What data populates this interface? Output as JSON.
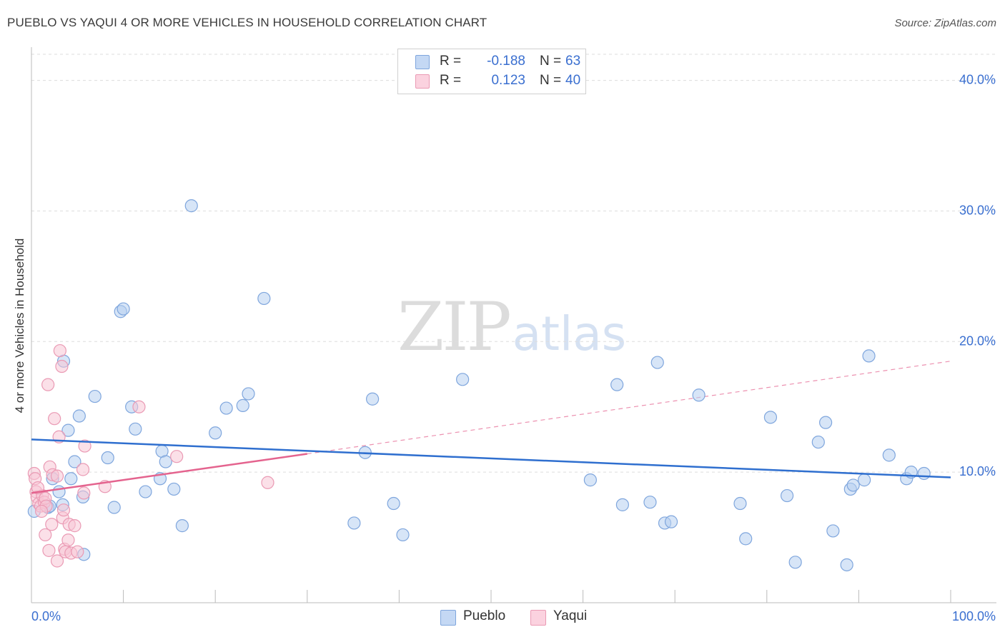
{
  "header": {
    "title": "PUEBLO VS YAQUI 4 OR MORE VEHICLES IN HOUSEHOLD CORRELATION CHART",
    "source": "Source: ZipAtlas.com"
  },
  "legend": {
    "pueblo": {
      "r_label": "R =",
      "r_value": "-0.188",
      "n_label": "N =",
      "n_value": "63"
    },
    "yaqui": {
      "r_label": "R =",
      "r_value": "0.123",
      "n_label": "N =",
      "n_value": "40"
    }
  },
  "watermark": {
    "zip": "ZIP",
    "atlas": "atlas"
  },
  "colors": {
    "pueblo_fill": "#b6cff1",
    "pueblo_stroke": "#7fa6dd",
    "pueblo_line": "#2f6fcf",
    "yaqui_fill": "#f8c6d6",
    "yaqui_stroke": "#ea9ab4",
    "yaqui_line": "#e4638e",
    "tick_label": "#3a6fd0",
    "grid": "#dddddd"
  },
  "chart_data": {
    "type": "scatter",
    "title": "PUEBLO VS YAQUI 4 OR MORE VEHICLES IN HOUSEHOLD CORRELATION CHART",
    "xlabel": "",
    "ylabel": "4 or more Vehicles in Household",
    "xlim": [
      0,
      100
    ],
    "ylim": [
      0,
      42
    ],
    "x_tick_labels": [
      "0.0%",
      "100.0%"
    ],
    "y_ticks": [
      10,
      20,
      30,
      40
    ],
    "y_tick_labels": [
      "10.0%",
      "20.0%",
      "30.0%",
      "40.0%"
    ],
    "legend_bottom": [
      "Pueblo",
      "Yaqui"
    ],
    "series": [
      {
        "name": "Pueblo",
        "points": [
          [
            17.4,
            30.4
          ],
          [
            25.3,
            23.3
          ],
          [
            9.7,
            22.3
          ],
          [
            10.0,
            22.5
          ],
          [
            3.5,
            18.5
          ],
          [
            6.9,
            15.8
          ],
          [
            8.3,
            11.1
          ],
          [
            10.9,
            15.0
          ],
          [
            11.3,
            13.3
          ],
          [
            14.2,
            11.6
          ],
          [
            14.6,
            10.8
          ],
          [
            5.2,
            14.3
          ],
          [
            4.0,
            13.2
          ],
          [
            4.7,
            10.8
          ],
          [
            4.3,
            9.5
          ],
          [
            2.3,
            9.5
          ],
          [
            3.0,
            8.5
          ],
          [
            5.6,
            8.1
          ],
          [
            1.8,
            7.3
          ],
          [
            9.0,
            7.3
          ],
          [
            12.4,
            8.5
          ],
          [
            14.0,
            9.5
          ],
          [
            15.5,
            8.7
          ],
          [
            16.4,
            5.9
          ],
          [
            20.0,
            13.0
          ],
          [
            21.2,
            14.9
          ],
          [
            23.0,
            15.1
          ],
          [
            23.6,
            16.0
          ],
          [
            5.7,
            3.7
          ],
          [
            2.0,
            7.4
          ],
          [
            3.4,
            7.5
          ],
          [
            35.1,
            6.1
          ],
          [
            37.1,
            15.6
          ],
          [
            39.4,
            7.6
          ],
          [
            40.4,
            5.2
          ],
          [
            46.9,
            17.1
          ],
          [
            36.3,
            11.5
          ],
          [
            60.8,
            9.4
          ],
          [
            63.7,
            16.7
          ],
          [
            64.3,
            7.5
          ],
          [
            67.3,
            7.7
          ],
          [
            68.1,
            18.4
          ],
          [
            68.9,
            6.1
          ],
          [
            69.6,
            6.2
          ],
          [
            72.6,
            15.9
          ],
          [
            77.1,
            7.6
          ],
          [
            77.7,
            4.9
          ],
          [
            80.4,
            14.2
          ],
          [
            82.2,
            8.2
          ],
          [
            83.1,
            3.1
          ],
          [
            85.6,
            12.3
          ],
          [
            86.4,
            13.8
          ],
          [
            87.2,
            5.5
          ],
          [
            88.7,
            2.9
          ],
          [
            89.1,
            8.7
          ],
          [
            89.4,
            9.0
          ],
          [
            90.6,
            9.4
          ],
          [
            91.1,
            18.9
          ],
          [
            93.3,
            11.3
          ],
          [
            95.2,
            9.5
          ],
          [
            95.7,
            10.0
          ],
          [
            97.1,
            9.9
          ],
          [
            0.3,
            7.0
          ]
        ]
      },
      {
        "name": "Yaqui",
        "points": [
          [
            0.3,
            9.9
          ],
          [
            0.4,
            9.5
          ],
          [
            0.5,
            8.5
          ],
          [
            0.6,
            8.1
          ],
          [
            0.8,
            7.6
          ],
          [
            1.0,
            7.4
          ],
          [
            1.2,
            8.2
          ],
          [
            1.4,
            7.7
          ],
          [
            1.5,
            8.0
          ],
          [
            1.6,
            7.4
          ],
          [
            1.8,
            16.7
          ],
          [
            2.0,
            10.4
          ],
          [
            2.3,
            9.8
          ],
          [
            2.5,
            14.1
          ],
          [
            2.8,
            9.7
          ],
          [
            3.0,
            12.7
          ],
          [
            3.1,
            19.3
          ],
          [
            3.3,
            18.1
          ],
          [
            3.4,
            6.5
          ],
          [
            3.5,
            7.1
          ],
          [
            3.6,
            4.1
          ],
          [
            3.7,
            3.9
          ],
          [
            4.0,
            4.8
          ],
          [
            4.1,
            6.0
          ],
          [
            4.3,
            3.8
          ],
          [
            4.7,
            5.9
          ],
          [
            5.0,
            3.9
          ],
          [
            5.6,
            10.2
          ],
          [
            5.7,
            8.4
          ],
          [
            5.8,
            12.0
          ],
          [
            8.0,
            8.9
          ],
          [
            11.7,
            15.0
          ],
          [
            15.8,
            11.2
          ],
          [
            25.7,
            9.2
          ],
          [
            1.5,
            5.2
          ],
          [
            1.9,
            4.0
          ],
          [
            2.8,
            3.2
          ],
          [
            2.2,
            6.0
          ],
          [
            1.1,
            7.0
          ],
          [
            0.7,
            8.8
          ]
        ]
      }
    ],
    "trend_lines": [
      {
        "name": "Pueblo",
        "x0": 0,
        "y0": 12.5,
        "x1": 100,
        "y1": 9.6,
        "style": "solid"
      },
      {
        "name": "Yaqui",
        "x0": 0,
        "y0": 8.4,
        "x1": 30,
        "y1": 11.4,
        "x_ext": 100,
        "y_ext": 18.5,
        "style": "solid-then-dashed"
      }
    ]
  }
}
